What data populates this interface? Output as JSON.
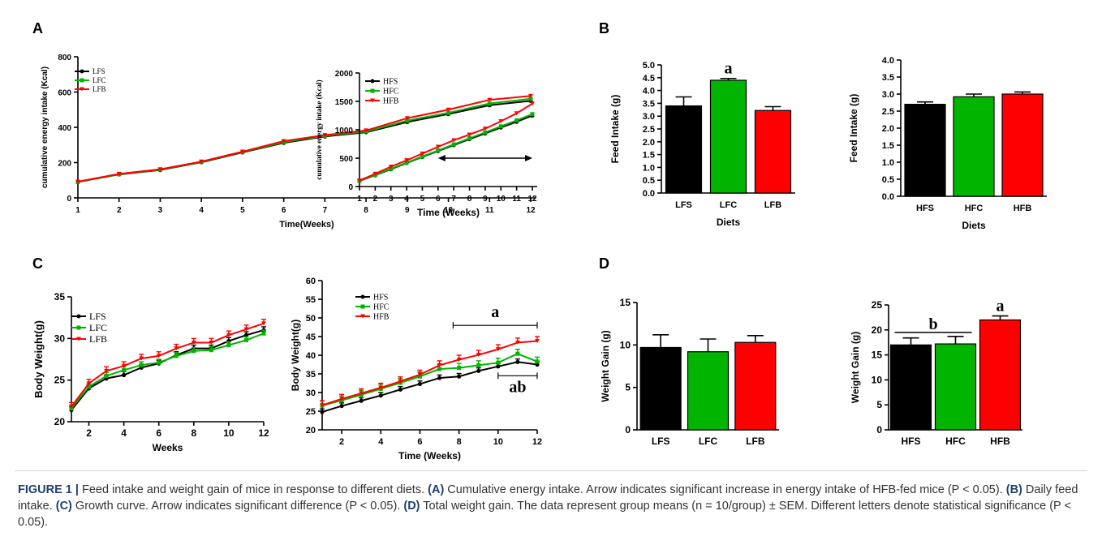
{
  "panel_letters": {
    "a": "A",
    "b": "B",
    "c": "C",
    "d": "D"
  },
  "caption": {
    "label": "FIGURE 1 |",
    "s1": " Feed intake and weight gain of mice in response to different diets. ",
    "a_tag": "(A)",
    "s2": " Cumulative energy intake. Arrow indicates significant increase in energy intake of HFB-fed mice (P < 0.05). ",
    "b_tag": "(B)",
    "s3": " Daily feed intake. ",
    "c_tag": "(C)",
    "s4": " Growth curve. Arrow indicates significant difference (P < 0.05). ",
    "d_tag": "(D)",
    "s5": " Total weight gain. The data represent group means (n = 10/group) ± SEM. Different letters denote statistical significance (P < 0.05)."
  },
  "colors": {
    "S": "#000000",
    "C": "#00b400",
    "B": "#ff0000"
  },
  "chart_data": [
    {
      "id": "A1",
      "type": "line",
      "xlabel": "Time(Weeks)",
      "ylabel": "cumulative energy intake (Kcal)",
      "x": [
        1,
        2,
        3,
        4,
        5,
        6,
        7,
        8,
        9,
        10,
        11,
        12
      ],
      "xticks": [
        1,
        2,
        3,
        4,
        5,
        6,
        7,
        8,
        9,
        10,
        11,
        12
      ],
      "ylim": [
        0,
        800
      ],
      "yticks": [
        0,
        200,
        400,
        600,
        800
      ],
      "legend_position": "top-left",
      "series": [
        {
          "name": "LFS",
          "color": "#000000",
          "values": [
            90,
            133,
            158,
            202,
            258,
            312,
            348,
            372,
            430,
            475,
            525,
            550
          ]
        },
        {
          "name": "LFC",
          "color": "#00b400",
          "values": [
            90,
            134,
            160,
            204,
            260,
            316,
            352,
            376,
            438,
            482,
            535,
            562
          ]
        },
        {
          "name": "LFB",
          "color": "#ff0000",
          "values": [
            92,
            136,
            162,
            206,
            262,
            322,
            356,
            382,
            452,
            500,
            556,
            578
          ]
        }
      ]
    },
    {
      "id": "A2",
      "type": "line",
      "xlabel": "Time (Weeks)",
      "ylabel": "cumulative energy intake (Kcal)",
      "x": [
        1,
        2,
        3,
        4,
        5,
        6,
        7,
        8,
        9,
        10,
        11,
        12
      ],
      "xticks": [
        1,
        2,
        3,
        4,
        5,
        6,
        7,
        8,
        9,
        10,
        11,
        12
      ],
      "ylim": [
        0,
        2000
      ],
      "yticks": [
        0,
        500,
        1000,
        1500,
        2000
      ],
      "legend_position": "top-left",
      "series": [
        {
          "name": "HFS",
          "color": "#000000",
          "values": [
            100,
            200,
            305,
            415,
            520,
            625,
            730,
            835,
            935,
            1040,
            1140,
            1250
          ]
        },
        {
          "name": "HFC",
          "color": "#00b400",
          "values": [
            102,
            205,
            312,
            422,
            528,
            635,
            742,
            850,
            952,
            1060,
            1165,
            1275
          ]
        },
        {
          "name": "HFB",
          "color": "#ff0000",
          "values": [
            105,
            225,
            350,
            462,
            580,
            700,
            815,
            915,
            1020,
            1150,
            1290,
            1460
          ]
        }
      ],
      "annotations": [
        {
          "type": "double-arrow",
          "x_from": 6,
          "x_to": 12,
          "y": 500
        }
      ]
    },
    {
      "id": "B1",
      "type": "bar",
      "xlabel": "Diets",
      "ylabel": "Feed Intake (g)",
      "categories": [
        "LFS",
        "LFC",
        "LFB"
      ],
      "values": [
        3.4,
        4.4,
        3.22
      ],
      "errors": [
        0.35,
        0.07,
        0.15
      ],
      "colors": [
        "#000000",
        "#00b400",
        "#ff0000"
      ],
      "ylim": [
        0,
        5
      ],
      "yticks": [
        "0.0",
        "0.5",
        "1.0",
        "1.5",
        "2.0",
        "2.5",
        "3.0",
        "3.5",
        "4.0",
        "4.5",
        "5.0"
      ],
      "letters": [
        "",
        "a",
        ""
      ]
    },
    {
      "id": "B2",
      "type": "bar",
      "xlabel": "Diets",
      "ylabel": "Feed Intake (g)",
      "categories": [
        "HFS",
        "HFC",
        "HFB"
      ],
      "values": [
        2.7,
        2.92,
        3.0
      ],
      "errors": [
        0.07,
        0.08,
        0.06
      ],
      "colors": [
        "#000000",
        "#00b400",
        "#ff0000"
      ],
      "ylim": [
        0,
        4
      ],
      "yticks": [
        "0.0",
        "0.5",
        "1.0",
        "1.5",
        "2.0",
        "2.5",
        "3.0",
        "3.5",
        "4.0"
      ]
    },
    {
      "id": "C1",
      "type": "line",
      "xlabel": "Weeks",
      "ylabel": "Body Weight(g)",
      "x": [
        1,
        2,
        3,
        4,
        5,
        6,
        7,
        8,
        9,
        10,
        11,
        12
      ],
      "xticks": [
        2,
        4,
        6,
        8,
        10,
        12
      ],
      "ylim": [
        20,
        35
      ],
      "yticks": [
        20,
        25,
        30,
        35
      ],
      "legend_position": "top-left",
      "series": [
        {
          "name": "LFS",
          "color": "#000000",
          "values": [
            21.4,
            24.0,
            25.2,
            25.6,
            26.5,
            27.0,
            28.0,
            28.8,
            28.8,
            29.7,
            30.4,
            31.0
          ],
          "err": 0.4
        },
        {
          "name": "LFC",
          "color": "#00b400",
          "values": [
            21.6,
            24.2,
            25.5,
            26.2,
            26.8,
            27.1,
            27.9,
            28.5,
            28.6,
            29.2,
            29.8,
            30.6
          ],
          "err": 0.4
        },
        {
          "name": "LFB",
          "color": "#ff0000",
          "values": [
            21.8,
            24.6,
            26.1,
            26.7,
            27.6,
            27.9,
            28.8,
            29.5,
            29.5,
            30.4,
            31.1,
            31.8
          ],
          "err": 0.5
        }
      ]
    },
    {
      "id": "C2",
      "type": "line",
      "xlabel": "Time (Weeks)",
      "ylabel": "Body Weight(g)",
      "x": [
        1,
        2,
        3,
        4,
        5,
        6,
        7,
        8,
        9,
        10,
        11,
        12
      ],
      "xticks": [
        2,
        4,
        6,
        8,
        10,
        12
      ],
      "ylim": [
        20,
        60
      ],
      "yticks": [
        20,
        25,
        30,
        35,
        40,
        45,
        50,
        55,
        60
      ],
      "legend_position": "top-left",
      "series": [
        {
          "name": "HFS",
          "color": "#000000",
          "values": [
            24.8,
            26.4,
            27.8,
            29.2,
            30.8,
            32.3,
            33.9,
            34.3,
            35.8,
            37.0,
            38.2,
            37.5
          ],
          "err": 0.8
        },
        {
          "name": "HFC",
          "color": "#00b400",
          "values": [
            26.5,
            27.9,
            29.4,
            31.0,
            32.6,
            34.3,
            36.3,
            36.6,
            37.3,
            38.0,
            40.4,
            38.3
          ],
          "err": 1.2
        },
        {
          "name": "HFB",
          "color": "#ff0000",
          "values": [
            26.6,
            28.3,
            29.8,
            31.3,
            33.0,
            34.8,
            37.3,
            38.8,
            40.1,
            41.6,
            43.4,
            43.8
          ],
          "err": 1.2
        }
      ],
      "annotations": [
        {
          "label": "a",
          "x_from": 7.7,
          "x_to": 12.0,
          "y": 48
        },
        {
          "label": "ab",
          "x_from": 10.0,
          "x_to": 12.0,
          "y": 34.5
        }
      ]
    },
    {
      "id": "D1",
      "type": "bar",
      "xlabel": "",
      "ylabel": "Weight Gain (g)",
      "categories": [
        "LFS",
        "LFC",
        "LFB"
      ],
      "values": [
        9.7,
        9.2,
        10.3
      ],
      "errors": [
        1.5,
        1.5,
        0.8
      ],
      "colors": [
        "#000000",
        "#00b400",
        "#ff0000"
      ],
      "ylim": [
        0,
        15
      ],
      "yticks": [
        "0",
        "5",
        "10",
        "15"
      ]
    },
    {
      "id": "D2",
      "type": "bar",
      "xlabel": "",
      "ylabel": "Weight Gain (g)",
      "categories": [
        "HFS",
        "HFC",
        "HFB"
      ],
      "values": [
        17.0,
        17.2,
        22.0
      ],
      "errors": [
        1.4,
        1.5,
        0.8
      ],
      "colors": [
        "#000000",
        "#00b400",
        "#ff0000"
      ],
      "ylim": [
        0,
        25
      ],
      "yticks": [
        "0",
        "5",
        "10",
        "15",
        "20",
        "25"
      ],
      "letters": [
        "",
        "",
        "a"
      ],
      "bracket": {
        "label": "b",
        "from": 0,
        "to": 1,
        "y": 19.5
      }
    }
  ]
}
